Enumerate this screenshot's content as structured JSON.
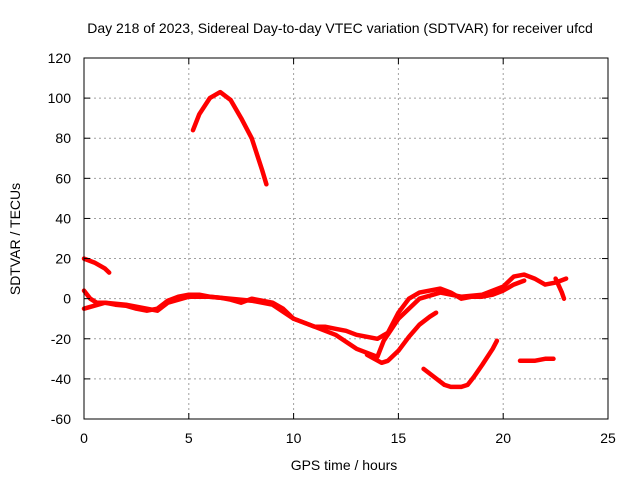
{
  "chart_data": {
    "type": "line",
    "title": "Day 218 of 2023, Sidereal Day-to-day VTEC variation (SDTVAR) for receiver ufcd",
    "xlabel": "GPS time / hours",
    "ylabel": "SDTVAR / TECUs",
    "xlim": [
      0,
      25
    ],
    "ylim": [
      -60,
      120
    ],
    "xticks": [
      0,
      5,
      10,
      15,
      20,
      25
    ],
    "yticks": [
      -60,
      -40,
      -20,
      0,
      20,
      40,
      60,
      80,
      100,
      120
    ],
    "grid": true,
    "color": "#ff0000",
    "series": [
      {
        "name": "arc-main-1",
        "x": [
          0,
          0.3,
          0.6,
          1,
          1.5,
          2,
          2.5,
          3,
          3.5,
          4,
          4.5,
          5,
          5.5,
          6,
          6.5,
          7,
          7.5,
          8,
          8.5,
          9,
          9.5,
          10,
          10.5,
          11,
          11.5,
          12,
          12.5,
          13,
          13.5,
          14,
          14.5,
          15,
          15.5,
          16,
          16.5,
          17,
          17.5,
          18,
          18.5,
          19,
          19.5,
          20,
          20.5,
          21
        ],
        "y": [
          4,
          0,
          -2,
          -2,
          -3,
          -3.5,
          -5,
          -6,
          -5,
          -1,
          1,
          2,
          2,
          1,
          0.5,
          -0.5,
          -2,
          0,
          -1,
          -2,
          -5,
          -10,
          -12,
          -14,
          -14,
          -15,
          -16,
          -18,
          -19,
          -20,
          -17,
          -7,
          0,
          3,
          4,
          5,
          3,
          0,
          1,
          1,
          2,
          4,
          7,
          9
        ]
      },
      {
        "name": "arc-main-2",
        "x": [
          0,
          1,
          2,
          3,
          3.5,
          4,
          5,
          6,
          7,
          8,
          9,
          10,
          11,
          12,
          13,
          14,
          14.3,
          15,
          16,
          17,
          18,
          19,
          20,
          20.5,
          21,
          21.5,
          22,
          22.5,
          23
        ],
        "y": [
          -5,
          -2,
          -3,
          -5,
          -6,
          -2,
          1,
          1,
          0,
          -1,
          -3,
          -10,
          -14,
          -18,
          -25,
          -29,
          -21,
          -10,
          0,
          3,
          1,
          2,
          6,
          11,
          12,
          10,
          7,
          8,
          10
        ]
      },
      {
        "name": "arc-early",
        "x": [
          0,
          0.5,
          1,
          1.2
        ],
        "y": [
          20,
          18,
          15,
          13
        ]
      },
      {
        "name": "arc-peak",
        "x": [
          5.2,
          5.5,
          6,
          6.5,
          7,
          7.5,
          8,
          8.5,
          8.7
        ],
        "y": [
          84,
          92,
          100,
          103,
          99,
          90,
          80,
          64,
          57
        ]
      },
      {
        "name": "arc-dip",
        "x": [
          13.5,
          14.2,
          14.5,
          15,
          15.5,
          16,
          16.5,
          16.8
        ],
        "y": [
          -28,
          -32,
          -31,
          -26,
          -19,
          -13,
          -9,
          -7
        ]
      },
      {
        "name": "arc-trough",
        "x": [
          16.2,
          16.7,
          17.2,
          17.5,
          18,
          18.3,
          18.6,
          19,
          19.5,
          19.7
        ],
        "y": [
          -35,
          -39,
          -43,
          -44,
          -44,
          -43,
          -39,
          -33,
          -25,
          -21
        ]
      },
      {
        "name": "arc-late",
        "x": [
          20.8,
          21.5,
          22,
          22.4
        ],
        "y": [
          -31,
          -31,
          -30,
          -30
        ]
      },
      {
        "name": "arc-end",
        "x": [
          22.5,
          22.8,
          22.9
        ],
        "y": [
          10,
          3,
          0
        ]
      }
    ]
  }
}
